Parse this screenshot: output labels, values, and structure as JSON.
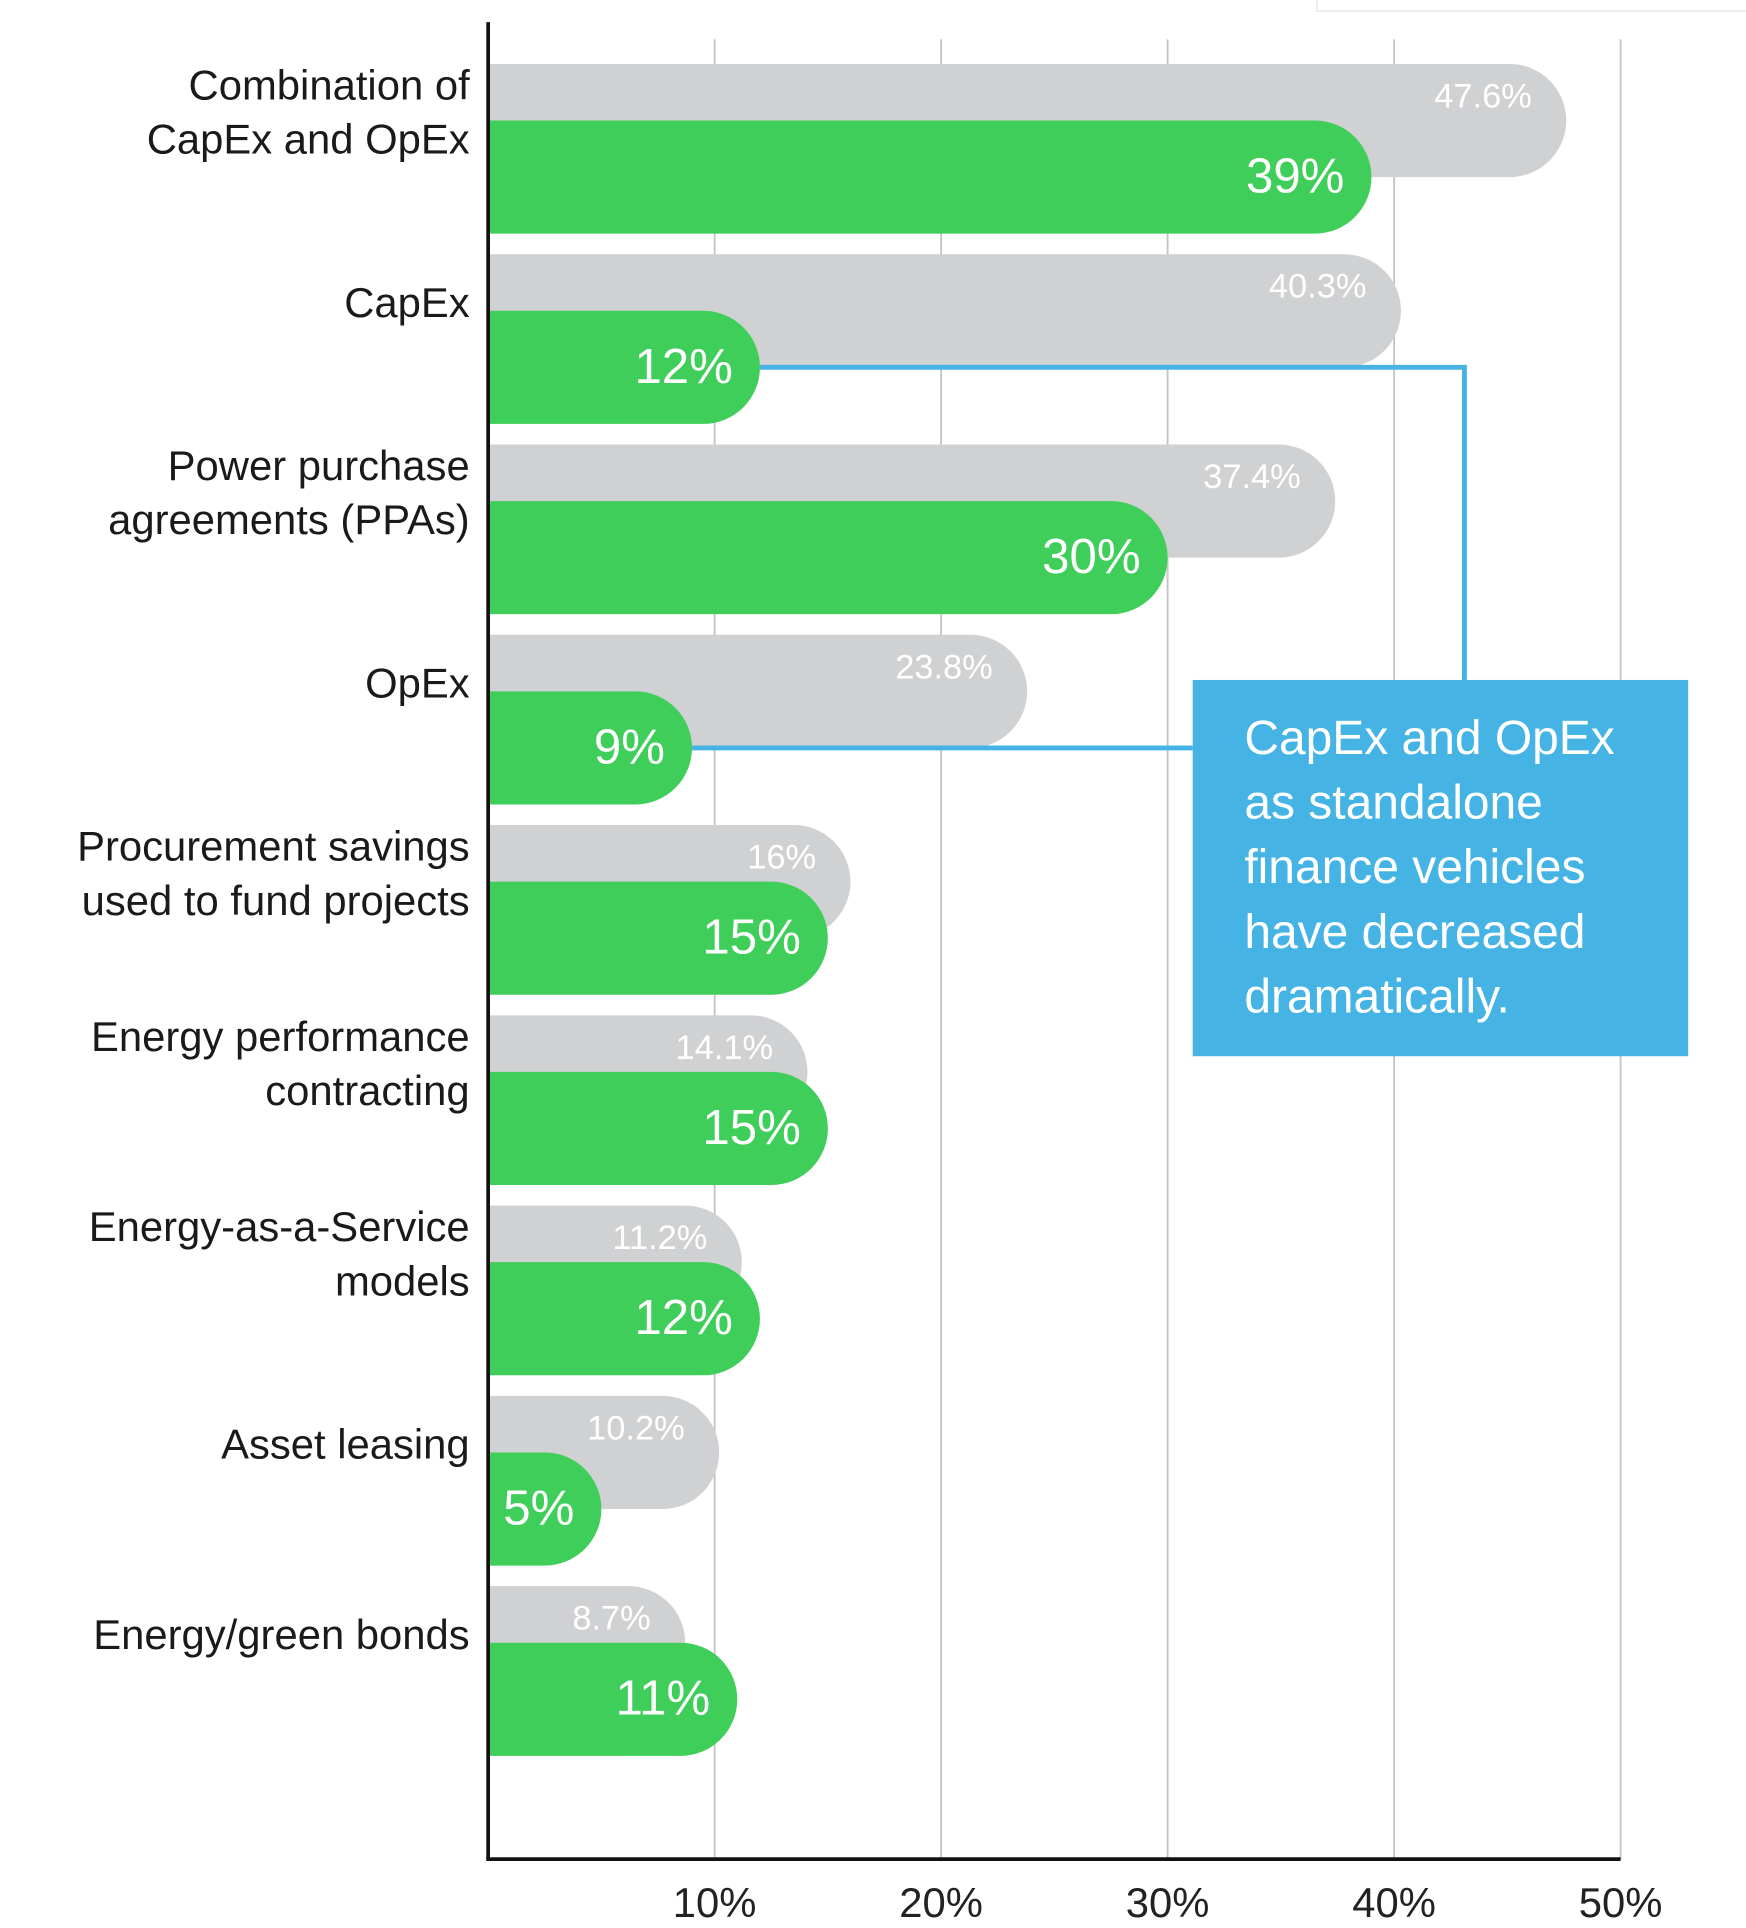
{
  "chart_data": {
    "type": "bar",
    "orientation": "horizontal",
    "categories": [
      [
        "Combination of",
        "CapEx and OpEx"
      ],
      [
        "CapEx"
      ],
      [
        "Power purchase",
        "agreements (PPAs)"
      ],
      [
        "OpEx"
      ],
      [
        "Procurement savings",
        "used to fund projects"
      ],
      [
        "Energy performance",
        "contracting"
      ],
      [
        "Energy-as-a-Service",
        "models"
      ],
      [
        "Asset leasing"
      ],
      [
        "Energy/green bonds"
      ]
    ],
    "series": [
      {
        "color": "#d0d1d3",
        "values": [
          47.6,
          40.3,
          37.4,
          23.8,
          16,
          14.1,
          11.2,
          10.2,
          8.7
        ],
        "value_labels": [
          "47.6%",
          "40.3%",
          "37.4%",
          "23.8%",
          "16%",
          "14.1%",
          "11.2%",
          "10.2%",
          "8.7%"
        ]
      },
      {
        "color": "#3fce5a",
        "values": [
          39,
          12,
          30,
          9,
          15,
          15,
          12,
          5,
          11
        ],
        "value_labels": [
          "39%",
          "12%",
          "30%",
          "9%",
          "15%",
          "15%",
          "12%",
          "5%",
          "11%"
        ]
      }
    ],
    "xlim": [
      0,
      50
    ],
    "xticks": [
      {
        "value": 10,
        "label": "10%"
      },
      {
        "value": 20,
        "label": "20%"
      },
      {
        "value": 30,
        "label": "30%"
      },
      {
        "value": 40,
        "label": "40%"
      },
      {
        "value": 50,
        "label": "50%"
      }
    ],
    "grid": true,
    "annotation": {
      "lines": [
        "CapEx and OpEx",
        "as standalone",
        "finance vehicles",
        "have decreased",
        "dramatically."
      ],
      "color": "#45b4e5",
      "points_to": [
        1,
        3
      ]
    }
  }
}
